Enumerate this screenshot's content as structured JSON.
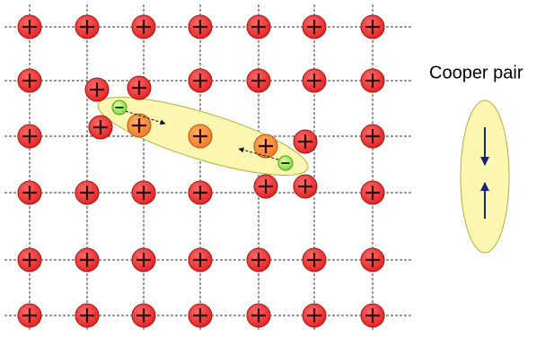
{
  "label": "Cooper pair"
}
